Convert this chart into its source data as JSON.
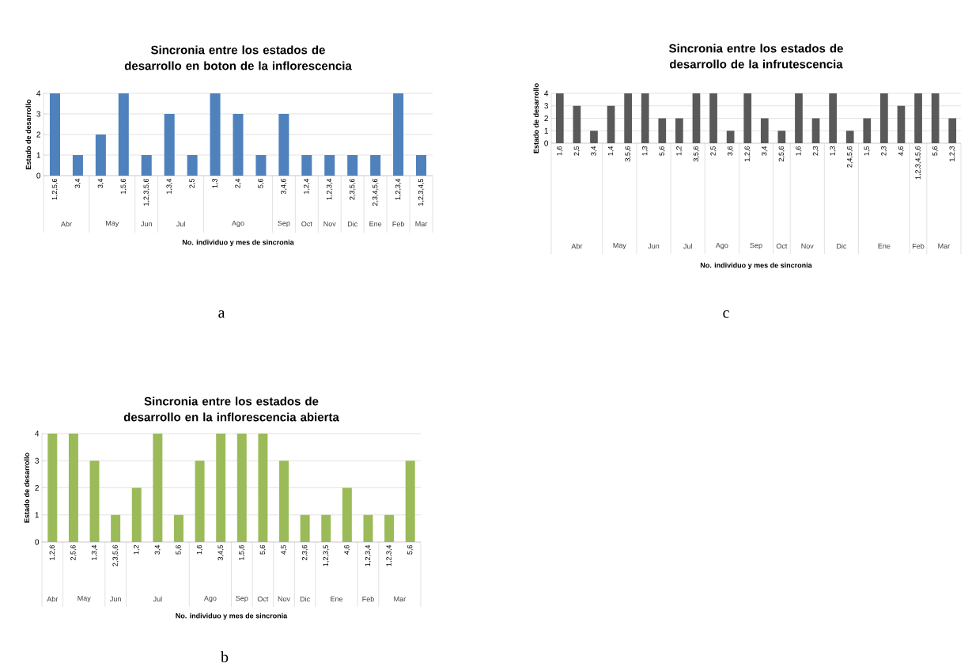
{
  "chart_data": [
    {
      "type": "bar",
      "title": "Sincronia entre los estados de desarrollo en boton de la inflorescencia",
      "xlabel": "No. individuo y mes de sincronia",
      "ylabel": "Estado de desarrollo",
      "color": "#4f81bd",
      "grid": "y",
      "ylim": [
        0,
        4
      ],
      "yticks": [
        0,
        1,
        2,
        3,
        4
      ],
      "categories": [
        "1,2,5,6",
        "3,4",
        "3,4",
        "1,5,6",
        "1,2,3,5,6",
        "1,3,4",
        "2,5",
        "1,3",
        "2,4",
        "5,6",
        "3,4,6",
        "1,2,4",
        "1,2,3,4",
        "2,3,5,6",
        "2,3,4,5,6",
        "1,2,3,4",
        "1,2,3,4,5"
      ],
      "values": [
        4,
        1,
        2,
        4,
        1,
        3,
        1,
        4,
        3,
        1,
        3,
        1,
        1,
        1,
        1,
        4,
        1
      ],
      "annotations": [
        "Abr",
        "May",
        "Jun",
        "Jul",
        "Ago",
        "Sep",
        "Oct",
        "Nov",
        "Dic",
        "Ene",
        "Feb",
        "Mar",
        "a"
      ]
    },
    {
      "type": "bar",
      "title": "Sincronia entre los estados de desarrollo de la infrutescencia",
      "xlabel": "No. individuo y mes de sincronia",
      "ylabel": "Estado de desarrollo",
      "color": "#595959",
      "grid": "y",
      "ylim": [
        0,
        4
      ],
      "yticks": [
        0,
        1,
        2,
        3,
        4
      ],
      "categories": [
        "1,6",
        "2,5",
        "3,4",
        "1,4",
        "3,5,6",
        "1,3",
        "5,6",
        "1,2",
        "3,5,6",
        "2,5",
        "3,6",
        "1,2,6",
        "3,4",
        "2,5,6",
        "1,6",
        "2,3",
        "1,3",
        "2,4,5,6",
        "1,5",
        "2,3",
        "4,6",
        "1,2,3,4,5,6",
        "5,6",
        "1,2,3"
      ],
      "values": [
        4,
        3,
        1,
        3,
        4,
        4,
        2,
        2,
        4,
        4,
        1,
        4,
        2,
        1,
        4,
        2,
        4,
        1,
        2,
        4,
        3,
        4,
        4,
        2
      ],
      "annotations": [
        "Abr",
        "May",
        "Jun",
        "Jul",
        "Ago",
        "Sep",
        "Oct",
        "Nov",
        "Dic",
        "Ene",
        "Feb",
        "Mar",
        "c"
      ]
    },
    {
      "type": "bar",
      "title": "Sincronia entre los estados de desarrollo en la inflorescencia abierta",
      "xlabel": "No. individuo y mes de sincronia",
      "ylabel": "Estado de desarrollo",
      "color": "#9bbb59",
      "grid": "y",
      "ylim": [
        0,
        4
      ],
      "yticks": [
        0,
        1,
        2,
        3,
        4
      ],
      "categories": [
        "1,2,6",
        "2,5,6",
        "1,3,4",
        "2,3,5,6",
        "1,2",
        "3,4",
        "5,6",
        "1,6",
        "3,4,5",
        "1,5,6",
        "5,6",
        "4,5",
        "2,3,6",
        "1,2,3,5",
        "4,6",
        "1,2,3,4",
        "1,2,3,4",
        "5,6"
      ],
      "values": [
        4,
        4,
        3,
        1,
        2,
        4,
        1,
        3,
        4,
        4,
        4,
        3,
        1,
        1,
        2,
        1,
        1,
        3
      ],
      "annotations": [
        "Abr",
        "May",
        "Jun",
        "Jul",
        "Ago",
        "Sep",
        "Oct",
        "Nov",
        "Dic",
        "Ene",
        "Feb",
        "Mar",
        "b"
      ]
    }
  ]
}
